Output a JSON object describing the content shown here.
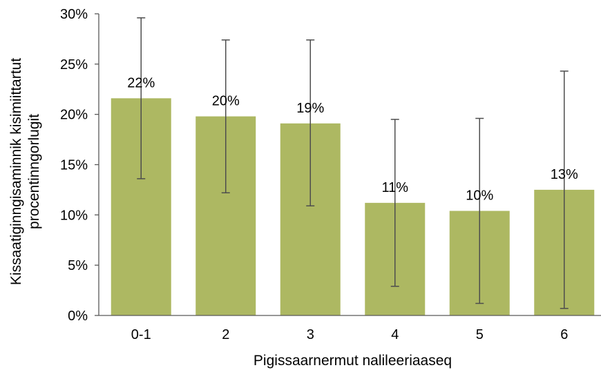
{
  "chart_data": {
    "type": "bar",
    "categories": [
      "0-1",
      "2",
      "3",
      "4",
      "5",
      "6"
    ],
    "values": [
      21.6,
      19.8,
      19.1,
      11.2,
      10.4,
      12.5
    ],
    "error_low": [
      13.6,
      12.2,
      10.9,
      2.9,
      1.2,
      0.7
    ],
    "error_high": [
      29.6,
      27.4,
      27.4,
      19.5,
      19.6,
      24.3
    ],
    "data_labels": [
      "22%",
      "20%",
      "19%",
      "11%",
      "10%",
      "13%"
    ],
    "xlabel": "Pigissaarnermut nalileeriaaseq",
    "ylabel_lines": [
      "Kissaatiginngisaminnik kisimiittartut",
      "procentinngorlugit"
    ],
    "ylim": [
      0,
      30
    ],
    "yticks": [
      0,
      5,
      10,
      15,
      20,
      25,
      30
    ],
    "ytick_labels": [
      "0%",
      "5%",
      "10%",
      "15%",
      "20%",
      "25%",
      "30%"
    ],
    "bar_color": "#adb862",
    "error_bar_color": "#4d4d4d",
    "axis_color": "#595959",
    "grid": false,
    "legend": "none"
  }
}
